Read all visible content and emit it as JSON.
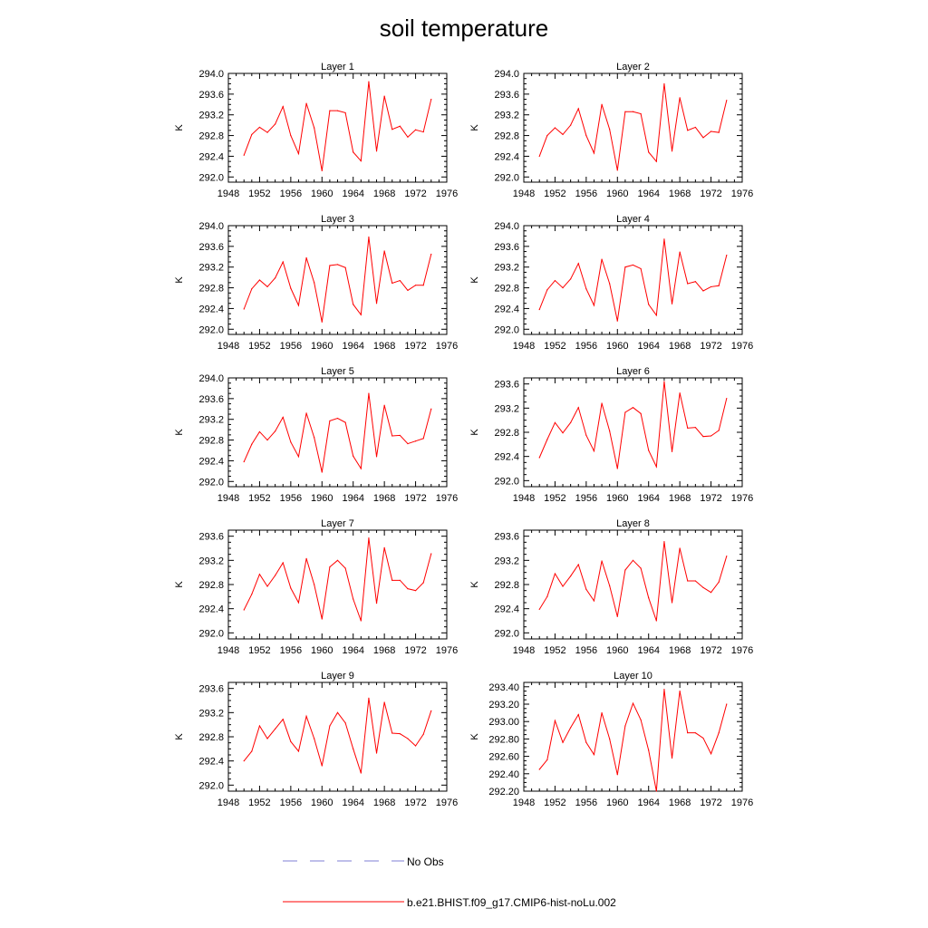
{
  "figure": {
    "title": "soil temperature",
    "legend": [
      {
        "label": "No Obs",
        "color": "#7f7fd6",
        "style": "dashed"
      },
      {
        "label": "b.e21.BHIST.f09_g17.CMIP6-hist-noLu.002",
        "color": "#ff0000",
        "style": "solid"
      }
    ]
  },
  "chart_data": [
    {
      "type": "line",
      "title": "Layer 1",
      "ylabel": "K",
      "xlim": [
        1948,
        1976
      ],
      "ylim": [
        291.9,
        294.0
      ],
      "xticks": [
        "1948",
        "1952",
        "1956",
        "1960",
        "1964",
        "1968",
        "1972",
        "1976"
      ],
      "yticks": [
        "292.0",
        "292.4",
        "292.8",
        "293.2",
        "293.6",
        "294.0"
      ],
      "x": [
        1950,
        1951,
        1952,
        1953,
        1954,
        1955,
        1956,
        1957,
        1958,
        1959,
        1960,
        1961,
        1962,
        1963,
        1964,
        1965,
        1966,
        1967,
        1968,
        1969,
        1970,
        1971,
        1972,
        1973,
        1974
      ],
      "series": [
        {
          "name": "b.e21.BHIST.f09_g17.CMIP6-hist-noLu.002",
          "color": "#ff0000",
          "values": [
            292.42,
            292.82,
            292.96,
            292.86,
            293.02,
            293.36,
            292.8,
            292.45,
            293.42,
            292.95,
            292.12,
            293.28,
            293.28,
            293.24,
            292.48,
            292.31,
            293.84,
            292.5,
            293.56,
            292.92,
            292.98,
            292.77,
            292.91,
            292.87,
            293.5
          ]
        }
      ]
    },
    {
      "type": "line",
      "title": "Layer 2",
      "ylabel": "K",
      "xlim": [
        1948,
        1976
      ],
      "ylim": [
        291.9,
        294.0
      ],
      "xticks": [
        "1948",
        "1952",
        "1956",
        "1960",
        "1964",
        "1968",
        "1972",
        "1976"
      ],
      "yticks": [
        "292.0",
        "292.4",
        "292.8",
        "293.2",
        "293.6",
        "294.0"
      ],
      "x": [
        1950,
        1951,
        1952,
        1953,
        1954,
        1955,
        1956,
        1957,
        1958,
        1959,
        1960,
        1961,
        1962,
        1963,
        1964,
        1965,
        1966,
        1967,
        1968,
        1969,
        1970,
        1971,
        1972,
        1973,
        1974
      ],
      "series": [
        {
          "name": "b.e21.BHIST.f09_g17.CMIP6-hist-noLu.002",
          "color": "#ff0000",
          "values": [
            292.4,
            292.8,
            292.95,
            292.82,
            293.0,
            293.32,
            292.8,
            292.46,
            293.4,
            292.92,
            292.13,
            293.26,
            293.26,
            293.22,
            292.48,
            292.3,
            293.8,
            292.5,
            293.53,
            292.9,
            292.96,
            292.76,
            292.88,
            292.86,
            293.48
          ]
        }
      ]
    },
    {
      "type": "line",
      "title": "Layer 3",
      "ylabel": "K",
      "xlim": [
        1948,
        1976
      ],
      "ylim": [
        291.9,
        294.0
      ],
      "xticks": [
        "1948",
        "1952",
        "1956",
        "1960",
        "1964",
        "1968",
        "1972",
        "1976"
      ],
      "yticks": [
        "292.0",
        "292.4",
        "292.8",
        "293.2",
        "293.6",
        "294.0"
      ],
      "x": [
        1950,
        1951,
        1952,
        1953,
        1954,
        1955,
        1956,
        1957,
        1958,
        1959,
        1960,
        1961,
        1962,
        1963,
        1964,
        1965,
        1966,
        1967,
        1968,
        1969,
        1970,
        1971,
        1972,
        1973,
        1974
      ],
      "series": [
        {
          "name": "b.e21.BHIST.f09_g17.CMIP6-hist-noLu.002",
          "color": "#ff0000",
          "values": [
            292.39,
            292.78,
            292.95,
            292.82,
            292.99,
            293.3,
            292.79,
            292.46,
            293.38,
            292.9,
            292.14,
            293.23,
            293.25,
            293.19,
            292.48,
            292.28,
            293.78,
            292.5,
            293.51,
            292.89,
            292.94,
            292.75,
            292.85,
            292.85,
            293.45
          ]
        }
      ]
    },
    {
      "type": "line",
      "title": "Layer 4",
      "ylabel": "K",
      "xlim": [
        1948,
        1976
      ],
      "ylim": [
        291.9,
        294.0
      ],
      "xticks": [
        "1948",
        "1952",
        "1956",
        "1960",
        "1964",
        "1968",
        "1972",
        "1976"
      ],
      "yticks": [
        "292.0",
        "292.4",
        "292.8",
        "293.2",
        "293.6",
        "294.0"
      ],
      "x": [
        1950,
        1951,
        1952,
        1953,
        1954,
        1955,
        1956,
        1957,
        1958,
        1959,
        1960,
        1961,
        1962,
        1963,
        1964,
        1965,
        1966,
        1967,
        1968,
        1969,
        1970,
        1971,
        1972,
        1973,
        1974
      ],
      "series": [
        {
          "name": "b.e21.BHIST.f09_g17.CMIP6-hist-noLu.002",
          "color": "#ff0000",
          "values": [
            292.38,
            292.76,
            292.94,
            292.8,
            292.97,
            293.27,
            292.78,
            292.46,
            293.35,
            292.88,
            292.16,
            293.2,
            293.24,
            293.17,
            292.48,
            292.27,
            293.74,
            292.49,
            293.49,
            292.88,
            292.92,
            292.74,
            292.82,
            292.84,
            293.43
          ]
        }
      ]
    },
    {
      "type": "line",
      "title": "Layer 5",
      "ylabel": "K",
      "xlim": [
        1948,
        1976
      ],
      "ylim": [
        291.9,
        294.0
      ],
      "xticks": [
        "1948",
        "1952",
        "1956",
        "1960",
        "1964",
        "1968",
        "1972",
        "1976"
      ],
      "yticks": [
        "292.0",
        "292.4",
        "292.8",
        "293.2",
        "293.6",
        "294.0"
      ],
      "x": [
        1950,
        1951,
        1952,
        1953,
        1954,
        1955,
        1956,
        1957,
        1958,
        1959,
        1960,
        1961,
        1962,
        1963,
        1964,
        1965,
        1966,
        1967,
        1968,
        1969,
        1970,
        1971,
        1972,
        1973,
        1974
      ],
      "series": [
        {
          "name": "b.e21.BHIST.f09_g17.CMIP6-hist-noLu.002",
          "color": "#ff0000",
          "values": [
            292.38,
            292.72,
            292.96,
            292.8,
            292.97,
            293.24,
            292.76,
            292.48,
            293.32,
            292.85,
            292.18,
            293.17,
            293.22,
            293.14,
            292.49,
            292.25,
            293.7,
            292.48,
            293.47,
            292.88,
            292.89,
            292.73,
            292.78,
            292.83,
            293.4
          ]
        }
      ]
    },
    {
      "type": "line",
      "title": "Layer 6",
      "ylabel": "K",
      "xlim": [
        1948,
        1976
      ],
      "ylim": [
        291.9,
        293.7
      ],
      "xticks": [
        "1948",
        "1952",
        "1956",
        "1960",
        "1964",
        "1968",
        "1972",
        "1976"
      ],
      "yticks": [
        "292.0",
        "292.4",
        "292.8",
        "293.2",
        "293.6"
      ],
      "x": [
        1950,
        1951,
        1952,
        1953,
        1954,
        1955,
        1956,
        1957,
        1958,
        1959,
        1960,
        1961,
        1962,
        1963,
        1964,
        1965,
        1966,
        1967,
        1968,
        1969,
        1970,
        1971,
        1972,
        1973,
        1974
      ],
      "series": [
        {
          "name": "b.e21.BHIST.f09_g17.CMIP6-hist-noLu.002",
          "color": "#ff0000",
          "values": [
            292.38,
            292.68,
            292.96,
            292.79,
            292.96,
            293.21,
            292.75,
            292.49,
            293.28,
            292.82,
            292.2,
            293.13,
            293.21,
            293.11,
            292.5,
            292.23,
            293.64,
            292.48,
            293.45,
            292.87,
            292.88,
            292.73,
            292.74,
            292.83,
            293.36
          ]
        }
      ]
    },
    {
      "type": "line",
      "title": "Layer 7",
      "ylabel": "K",
      "xlim": [
        1948,
        1976
      ],
      "ylim": [
        291.9,
        293.7
      ],
      "xticks": [
        "1948",
        "1952",
        "1956",
        "1960",
        "1964",
        "1968",
        "1972",
        "1976"
      ],
      "yticks": [
        "292.0",
        "292.4",
        "292.8",
        "293.2",
        "293.6"
      ],
      "x": [
        1950,
        1951,
        1952,
        1953,
        1954,
        1955,
        1956,
        1957,
        1958,
        1959,
        1960,
        1961,
        1962,
        1963,
        1964,
        1965,
        1966,
        1967,
        1968,
        1969,
        1970,
        1971,
        1972,
        1973,
        1974
      ],
      "series": [
        {
          "name": "b.e21.BHIST.f09_g17.CMIP6-hist-noLu.002",
          "color": "#ff0000",
          "values": [
            292.38,
            292.64,
            292.97,
            292.77,
            292.95,
            293.16,
            292.74,
            292.5,
            293.23,
            292.8,
            292.23,
            293.09,
            293.2,
            293.07,
            292.56,
            292.2,
            293.57,
            292.49,
            293.41,
            292.87,
            292.87,
            292.73,
            292.7,
            292.83,
            293.31
          ]
        }
      ]
    },
    {
      "type": "line",
      "title": "Layer 8",
      "ylabel": "K",
      "xlim": [
        1948,
        1976
      ],
      "ylim": [
        291.9,
        293.7
      ],
      "xticks": [
        "1948",
        "1952",
        "1956",
        "1960",
        "1964",
        "1968",
        "1972",
        "1976"
      ],
      "yticks": [
        "292.0",
        "292.4",
        "292.8",
        "293.2",
        "293.6"
      ],
      "x": [
        1950,
        1951,
        1952,
        1953,
        1954,
        1955,
        1956,
        1957,
        1958,
        1959,
        1960,
        1961,
        1962,
        1963,
        1964,
        1965,
        1966,
        1967,
        1968,
        1969,
        1970,
        1971,
        1972,
        1973,
        1974
      ],
      "series": [
        {
          "name": "b.e21.BHIST.f09_g17.CMIP6-hist-noLu.002",
          "color": "#ff0000",
          "values": [
            292.39,
            292.6,
            292.98,
            292.77,
            292.94,
            293.13,
            292.72,
            292.53,
            293.19,
            292.78,
            292.27,
            293.04,
            293.2,
            293.07,
            292.58,
            292.2,
            293.51,
            292.5,
            293.4,
            292.86,
            292.86,
            292.75,
            292.67,
            292.84,
            293.27
          ]
        }
      ]
    },
    {
      "type": "line",
      "title": "Layer 9",
      "ylabel": "K",
      "xlim": [
        1948,
        1976
      ],
      "ylim": [
        291.9,
        293.7
      ],
      "xticks": [
        "1948",
        "1952",
        "1956",
        "1960",
        "1964",
        "1968",
        "1972",
        "1976"
      ],
      "yticks": [
        "292.0",
        "292.4",
        "292.8",
        "293.2",
        "293.6"
      ],
      "x": [
        1950,
        1951,
        1952,
        1953,
        1954,
        1955,
        1956,
        1957,
        1958,
        1959,
        1960,
        1961,
        1962,
        1963,
        1964,
        1965,
        1966,
        1967,
        1968,
        1969,
        1970,
        1971,
        1972,
        1973,
        1974
      ],
      "series": [
        {
          "name": "b.e21.BHIST.f09_g17.CMIP6-hist-noLu.002",
          "color": "#ff0000",
          "values": [
            292.4,
            292.56,
            292.98,
            292.77,
            292.93,
            293.09,
            292.72,
            292.56,
            293.14,
            292.77,
            292.32,
            292.98,
            293.2,
            293.03,
            292.6,
            292.2,
            293.44,
            292.53,
            293.37,
            292.86,
            292.85,
            292.77,
            292.65,
            292.84,
            293.23
          ]
        }
      ]
    },
    {
      "type": "line",
      "title": "Layer 10",
      "ylabel": "K",
      "xlim": [
        1948,
        1976
      ],
      "ylim": [
        292.2,
        293.45
      ],
      "xticks": [
        "1948",
        "1952",
        "1956",
        "1960",
        "1964",
        "1968",
        "1972",
        "1976"
      ],
      "yticks": [
        "292.20",
        "292.40",
        "292.60",
        "292.80",
        "293.00",
        "293.20",
        "293.40"
      ],
      "x": [
        1950,
        1951,
        1952,
        1953,
        1954,
        1955,
        1956,
        1957,
        1958,
        1959,
        1960,
        1961,
        1962,
        1963,
        1964,
        1965,
        1966,
        1967,
        1968,
        1969,
        1970,
        1971,
        1972,
        1973,
        1974
      ],
      "series": [
        {
          "name": "b.e21.BHIST.f09_g17.CMIP6-hist-noLu.002",
          "color": "#ff0000",
          "values": [
            292.45,
            292.56,
            293.01,
            292.76,
            292.93,
            293.08,
            292.76,
            292.62,
            293.1,
            292.8,
            292.39,
            292.95,
            293.21,
            293.02,
            292.67,
            292.2,
            293.37,
            292.58,
            293.35,
            292.87,
            292.87,
            292.81,
            292.63,
            292.87,
            293.2
          ]
        }
      ]
    }
  ]
}
